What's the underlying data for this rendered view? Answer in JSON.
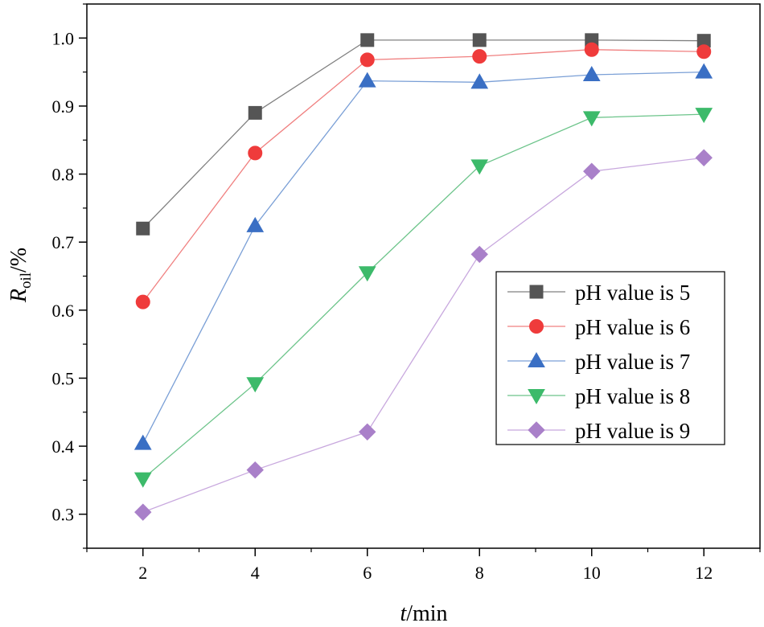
{
  "chart_data": {
    "type": "line",
    "title": "",
    "xlabel": {
      "italic": "t",
      "rest": "/min"
    },
    "ylabel": {
      "italic": "R",
      "sub": "oil",
      "rest": "/%"
    },
    "x": [
      2,
      4,
      6,
      8,
      10,
      12
    ],
    "xlim": [
      1,
      13
    ],
    "ylim": [
      0.25,
      1.05
    ],
    "xticks": [
      "2",
      "4",
      "6",
      "8",
      "10",
      "12"
    ],
    "yticks": [
      "0.3",
      "0.4",
      "0.5",
      "0.6",
      "0.7",
      "0.8",
      "0.9",
      "1.0"
    ],
    "grid": false,
    "legend_position": "center-right",
    "series": [
      {
        "name": "pH value is 5",
        "color": "#808080",
        "marker_color": "#555555",
        "marker": "square",
        "values": [
          0.72,
          0.89,
          0.997,
          0.997,
          0.997,
          0.996
        ]
      },
      {
        "name": "pH value is 6",
        "color": "#f08080",
        "marker_color": "#ef3b3b",
        "marker": "circle",
        "values": [
          0.612,
          0.831,
          0.968,
          0.973,
          0.983,
          0.98
        ]
      },
      {
        "name": "pH value is 7",
        "color": "#7a9fd6",
        "marker_color": "#3a6fc4",
        "marker": "triangle-up",
        "values": [
          0.404,
          0.724,
          0.937,
          0.935,
          0.946,
          0.95
        ]
      },
      {
        "name": "pH value is 8",
        "color": "#6cc48a",
        "marker_color": "#3cba6a",
        "marker": "triangle-down",
        "values": [
          0.352,
          0.492,
          0.655,
          0.812,
          0.883,
          0.888
        ]
      },
      {
        "name": "pH value is 9",
        "color": "#c8a8de",
        "marker_color": "#a980c9",
        "marker": "diamond",
        "values": [
          0.303,
          0.365,
          0.421,
          0.682,
          0.804,
          0.824
        ]
      }
    ]
  }
}
